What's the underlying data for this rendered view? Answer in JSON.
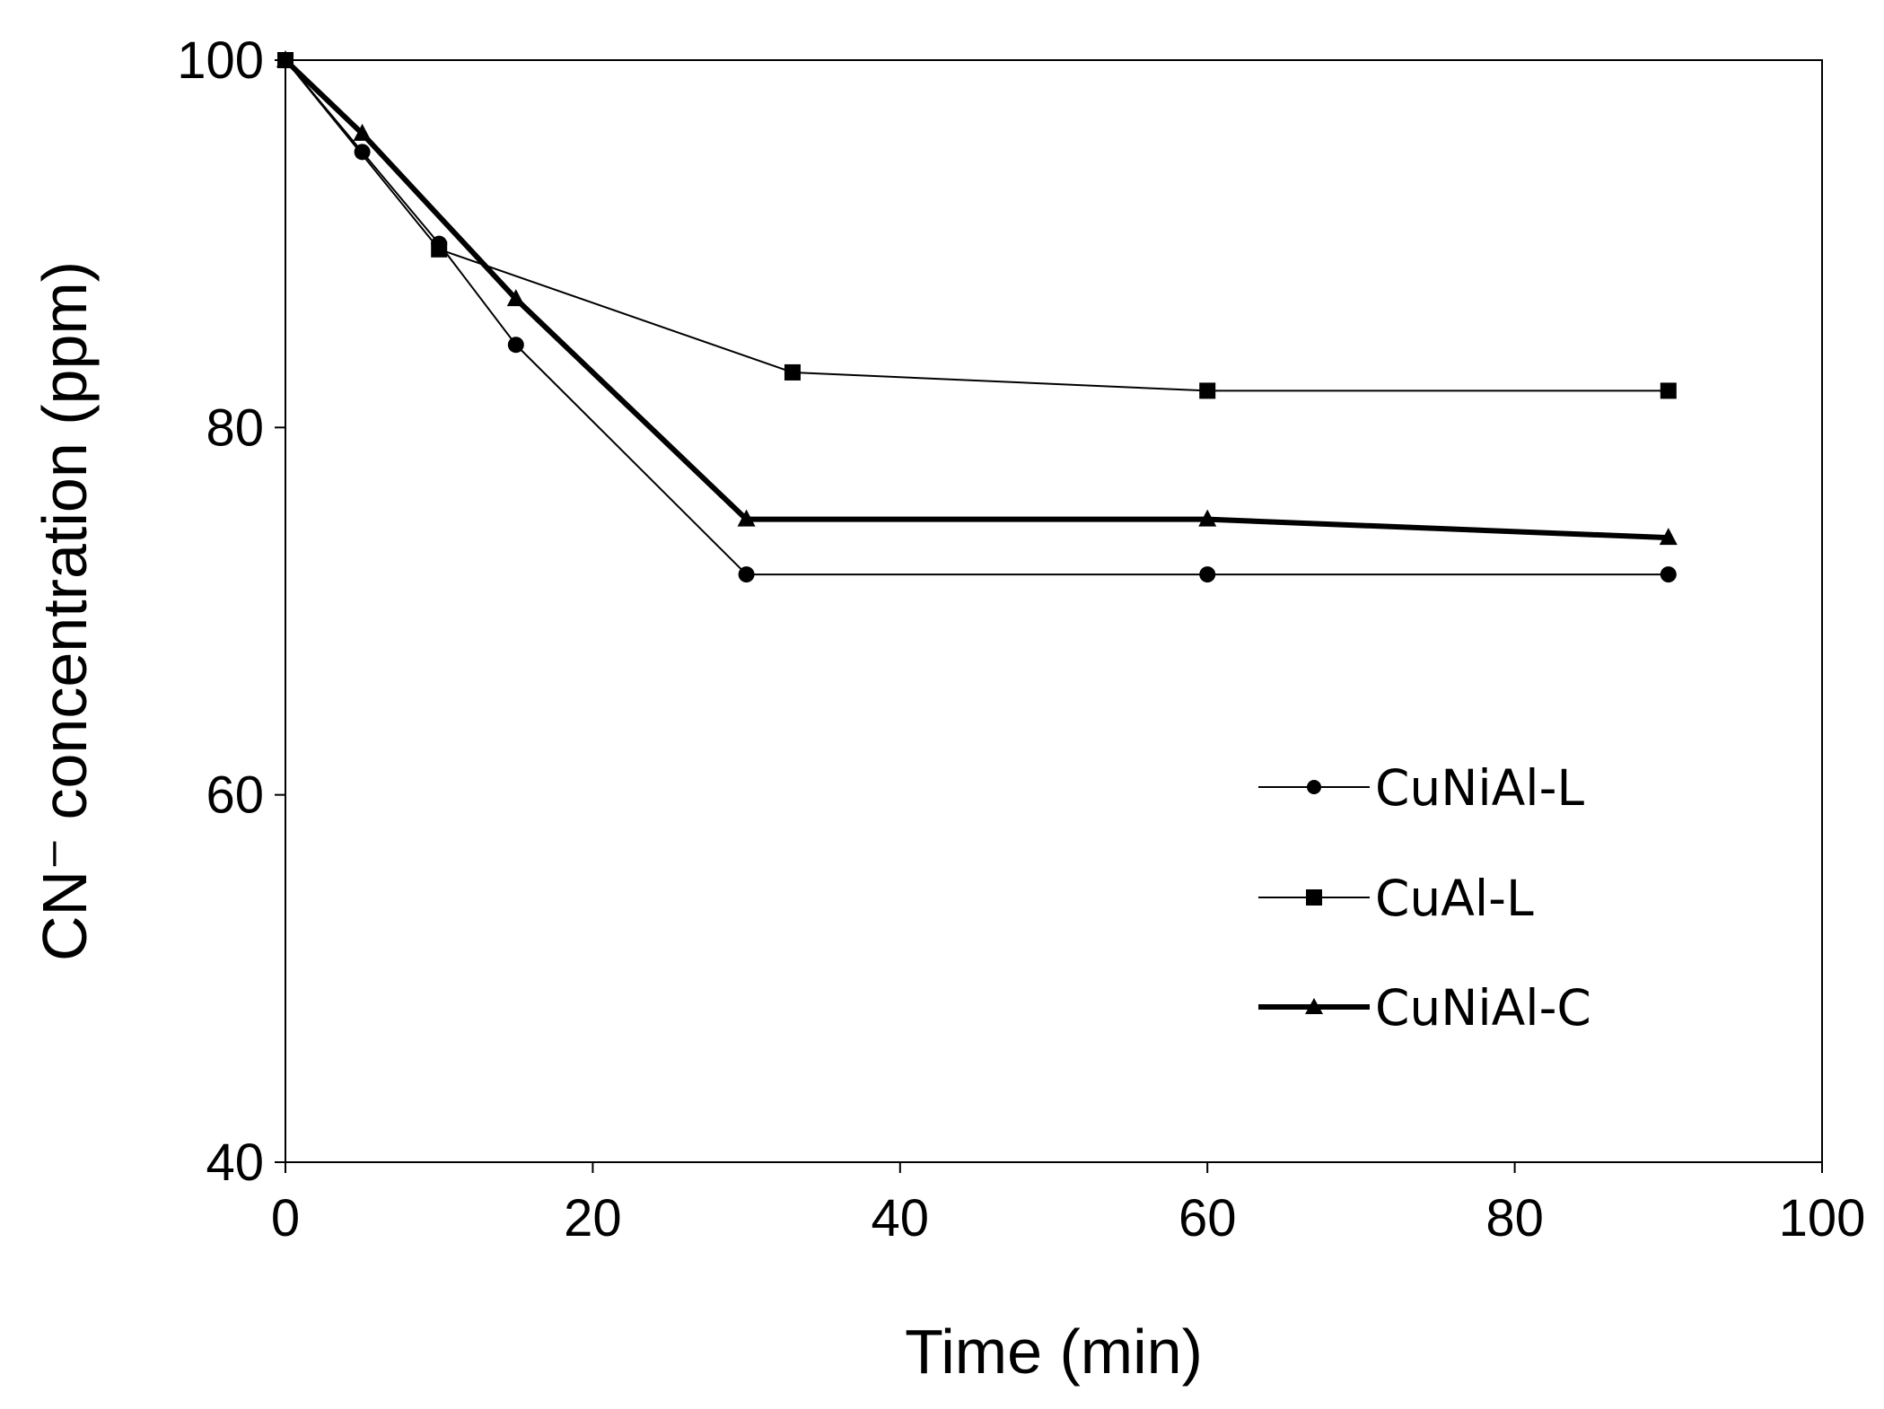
{
  "chart_data": {
    "type": "line",
    "title": "",
    "xlabel": "Time (min)",
    "ylabel": "CN⁻ concentration (ppm)",
    "xlim": [
      0,
      100
    ],
    "ylim": [
      40,
      100
    ],
    "xticks": [
      0,
      20,
      40,
      60,
      80,
      100
    ],
    "yticks": [
      40,
      60,
      80,
      100
    ],
    "xtick_labels": [
      "0",
      "20",
      "40",
      "60",
      "80",
      "100"
    ],
    "ytick_labels": [
      "40",
      "60",
      "80",
      "100"
    ],
    "grid": false,
    "legend_position": "middle-right",
    "series": [
      {
        "name": "CuNiAl-L",
        "marker": "circle",
        "line": "thin",
        "x": [
          0,
          5,
          10,
          15,
          30,
          60,
          90
        ],
        "y": [
          100,
          95,
          90,
          84.5,
          72,
          72,
          72
        ]
      },
      {
        "name": "CuAl-L",
        "marker": "square",
        "line": "thin",
        "x": [
          0,
          10,
          33,
          60,
          90
        ],
        "y": [
          100,
          89.7,
          83,
          82,
          82
        ]
      },
      {
        "name": "CuNiAl-C",
        "marker": "triangle",
        "line": "thick",
        "x": [
          0,
          5,
          15,
          30,
          60,
          90
        ],
        "y": [
          100,
          96,
          87,
          75,
          75,
          74
        ]
      }
    ]
  },
  "colors": {
    "line": "#000000",
    "background": "#ffffff",
    "axis": "#000000"
  }
}
